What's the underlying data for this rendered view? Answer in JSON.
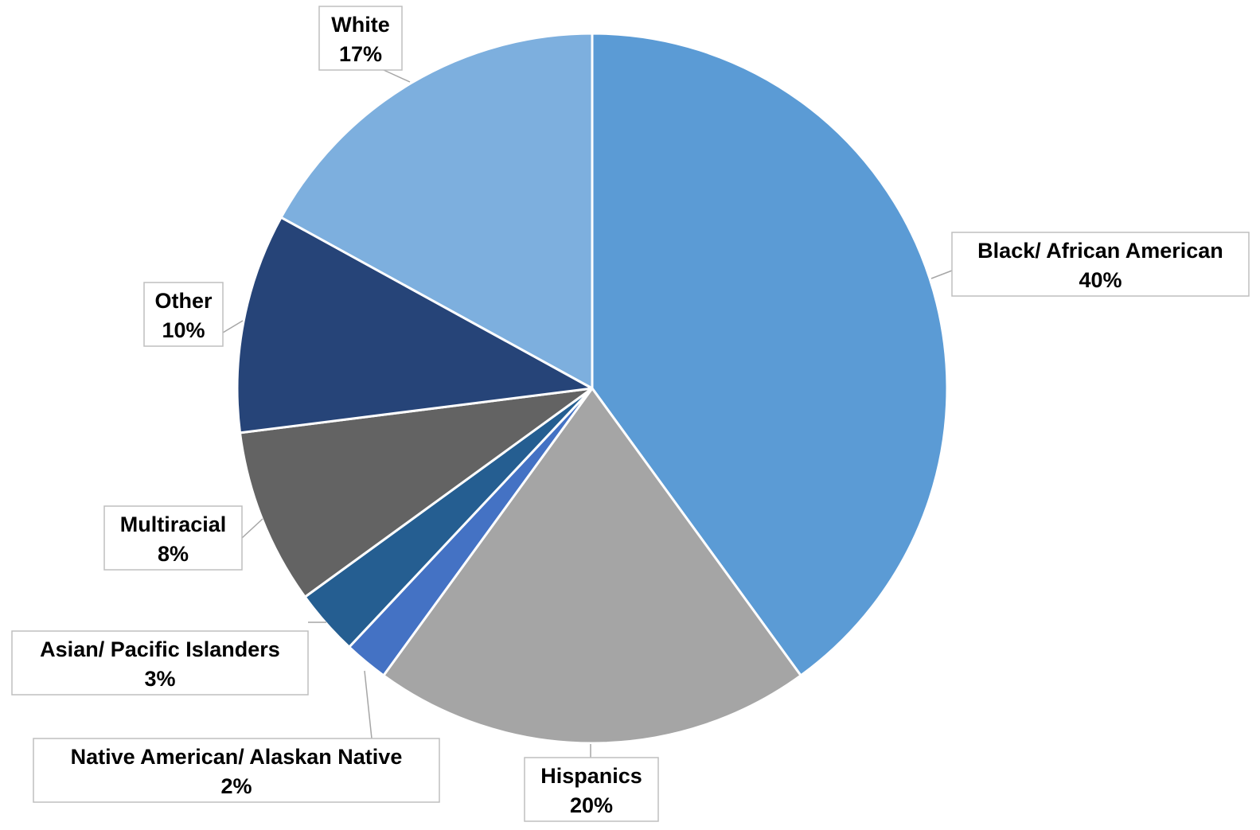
{
  "chart_data": {
    "type": "pie",
    "slices": [
      {
        "label": "Black/ African American",
        "value": 40,
        "value_label": "40%",
        "color": "#5B9BD5"
      },
      {
        "label": "Hispanics",
        "value": 20,
        "value_label": "20%",
        "color": "#A5A5A5"
      },
      {
        "label": "Native American/ Alaskan Native",
        "value": 2,
        "value_label": "2%",
        "color": "#4472C4"
      },
      {
        "label": "Asian/ Pacific Islanders",
        "value": 3,
        "value_label": "3%",
        "color": "#255E91"
      },
      {
        "label": "Multiracial",
        "value": 8,
        "value_label": "8%",
        "color": "#636363"
      },
      {
        "label": "Other",
        "value": 10,
        "value_label": "10%",
        "color": "#264478"
      },
      {
        "label": "White",
        "value": 17,
        "value_label": "17%",
        "color": "#7DAFDE"
      }
    ],
    "start_angle_deg": 0,
    "direction": "clockwise",
    "data_labels": "callout boxes with leader lines",
    "legend": "none"
  }
}
